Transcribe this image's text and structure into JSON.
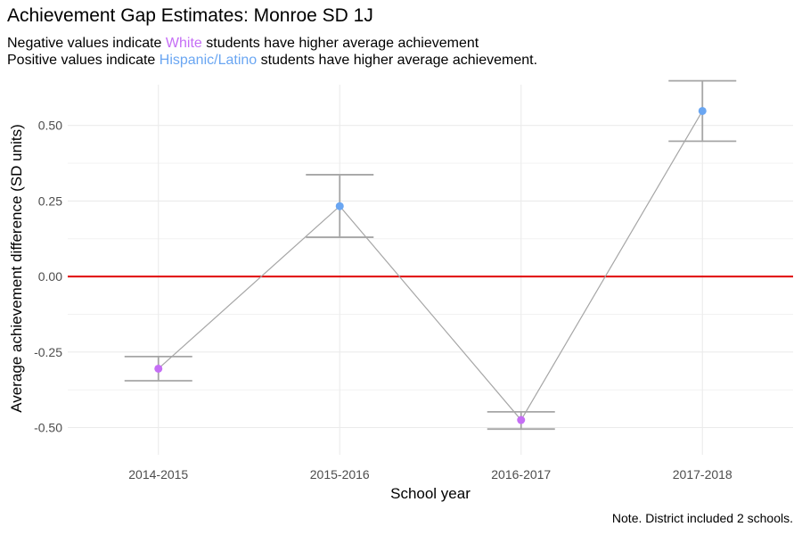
{
  "title": "Achievement Gap Estimates: Monroe SD 1J",
  "subtitle_line1": {
    "before": "Negative values indicate ",
    "group": "White",
    "after": " students have higher average achievement"
  },
  "subtitle_line2": {
    "before": "Positive values indicate ",
    "group": "Hispanic/Latino",
    "after": " students have higher average achievement."
  },
  "note": "Note. District included 2 schools.",
  "colors": {
    "white_group": "#c56ef5",
    "hispanic_group": "#6aa6f2",
    "zero_line": "#e00000",
    "trend_line": "#a6a6a6",
    "error_bar": "#a6a6a6",
    "grid": "#ebebeb"
  },
  "chart_data": {
    "type": "line",
    "title": "Achievement Gap Estimates: Monroe SD 1J",
    "xlabel": "School year",
    "ylabel": "Average achievement difference (SD units)",
    "categories": [
      "2014-2015",
      "2015-2016",
      "2016-2017",
      "2017-2018"
    ],
    "values": [
      -0.305,
      0.233,
      -0.475,
      0.548
    ],
    "error_low": [
      -0.345,
      0.13,
      -0.505,
      0.448
    ],
    "error_high": [
      -0.265,
      0.337,
      -0.448,
      0.648
    ],
    "ylim": [
      -0.59,
      0.635
    ],
    "yticks": [
      -0.5,
      -0.25,
      0,
      0.25,
      0.5
    ],
    "ytick_labels": [
      "-0.50",
      "-0.25",
      "0.00",
      "0.25",
      "0.50"
    ],
    "reference_line": 0,
    "grid": true,
    "point_color_rule": "negative = White color, positive = Hispanic/Latino color"
  }
}
